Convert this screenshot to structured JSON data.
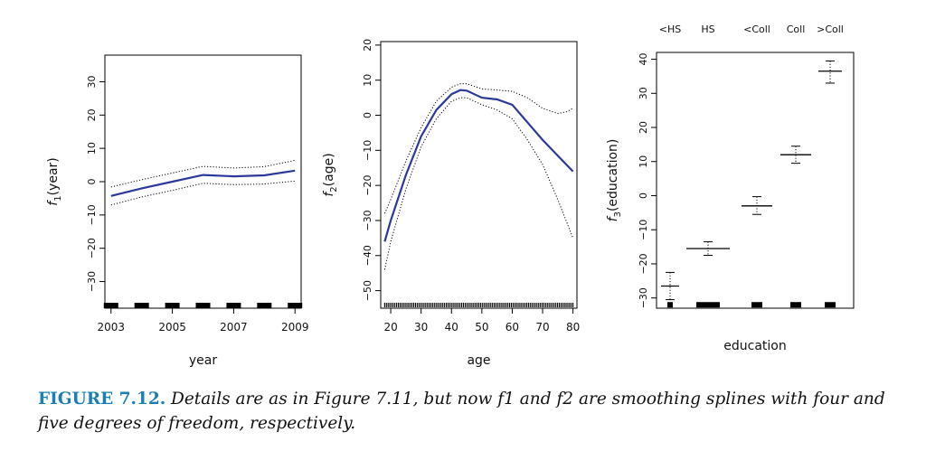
{
  "caption": {
    "label": "FIGURE 7.12.",
    "text": "Details are as in Figure 7.11, but now f1 and f2 are smoothing splines with four and five degrees of freedom, respectively."
  },
  "chart_data": [
    {
      "type": "line",
      "xlabel": "year",
      "ylabel": "f1(year)",
      "xlim": [
        2002.8,
        2009.2
      ],
      "ylim": [
        -38,
        38
      ],
      "xticks": [
        2003,
        2005,
        2007,
        2009
      ],
      "yticks": [
        -30,
        -20,
        -10,
        0,
        10,
        20,
        30
      ],
      "series": [
        {
          "role": "fit",
          "color": "#2b3a9a",
          "x": [
            2003,
            2004,
            2005,
            2006,
            2007,
            2008,
            2009
          ],
          "y": [
            -4.3,
            -2.0,
            0.0,
            2.0,
            1.6,
            1.9,
            3.3
          ]
        },
        {
          "role": "upper",
          "color": "#000000",
          "x": [
            2003,
            2004,
            2005,
            2006,
            2007,
            2008,
            2009
          ],
          "y": [
            -1.6,
            0.6,
            2.6,
            4.6,
            4.1,
            4.5,
            6.4
          ]
        },
        {
          "role": "lower",
          "color": "#000000",
          "x": [
            2003,
            2004,
            2005,
            2006,
            2007,
            2008,
            2009
          ],
          "y": [
            -7.0,
            -4.6,
            -2.6,
            -0.5,
            -0.9,
            -0.7,
            0.2
          ]
        }
      ],
      "rug": [
        2003,
        2004,
        2005,
        2006,
        2007,
        2008,
        2009
      ]
    },
    {
      "type": "line",
      "xlabel": "age",
      "ylabel": "f2(age)",
      "xlim": [
        16.7,
        81.3
      ],
      "ylim": [
        -55,
        21
      ],
      "xticks": [
        20,
        30,
        40,
        50,
        60,
        70,
        80
      ],
      "yticks": [
        -50,
        -40,
        -30,
        -20,
        -10,
        0,
        10,
        20
      ],
      "series": [
        {
          "role": "fit",
          "color": "#2b3a9a",
          "x": [
            18,
            20,
            25,
            30,
            35,
            40,
            43,
            45,
            50,
            55,
            60,
            65,
            70,
            75,
            80
          ],
          "y": [
            -36,
            -30,
            -17,
            -6,
            1.5,
            6.0,
            7.2,
            7.0,
            5.0,
            4.5,
            3.0,
            -2.0,
            -7.0,
            -11.5,
            -16.0
          ]
        },
        {
          "role": "upper",
          "color": "#000000",
          "x": [
            18,
            20,
            25,
            30,
            35,
            40,
            43,
            45,
            50,
            55,
            60,
            65,
            70,
            75,
            78,
            80
          ],
          "y": [
            -28,
            -24,
            -13,
            -3.5,
            4.0,
            8.0,
            9.0,
            9.0,
            7.5,
            7.2,
            6.8,
            5.0,
            2.0,
            0.5,
            1.0,
            2.0
          ]
        },
        {
          "role": "lower",
          "color": "#000000",
          "x": [
            18,
            20,
            25,
            30,
            35,
            40,
            43,
            45,
            50,
            55,
            60,
            65,
            70,
            75,
            80
          ],
          "y": [
            -44,
            -36,
            -21,
            -9,
            -1,
            4.0,
            5.0,
            5.0,
            3.0,
            1.5,
            -1.0,
            -7.0,
            -14.0,
            -24.0,
            -35.0
          ]
        }
      ],
      "rug": [
        18,
        80
      ]
    },
    {
      "type": "boxplot",
      "xlabel": "education",
      "ylabel": "f3(education)",
      "ylim": [
        -33,
        42
      ],
      "yticks": [
        -30,
        -20,
        -10,
        0,
        10,
        20,
        30,
        40
      ],
      "categories": [
        "<HS",
        "HS",
        "<Coll",
        "Coll",
        ">Coll"
      ],
      "estimates": [
        -26.5,
        -15.5,
        -3.0,
        12.0,
        36.5
      ],
      "upper": [
        -22.5,
        -13.5,
        -0.3,
        14.5,
        39.5
      ],
      "lower": [
        -30.5,
        -17.5,
        -5.5,
        9.5,
        33.0
      ],
      "rug_value": -32
    }
  ]
}
